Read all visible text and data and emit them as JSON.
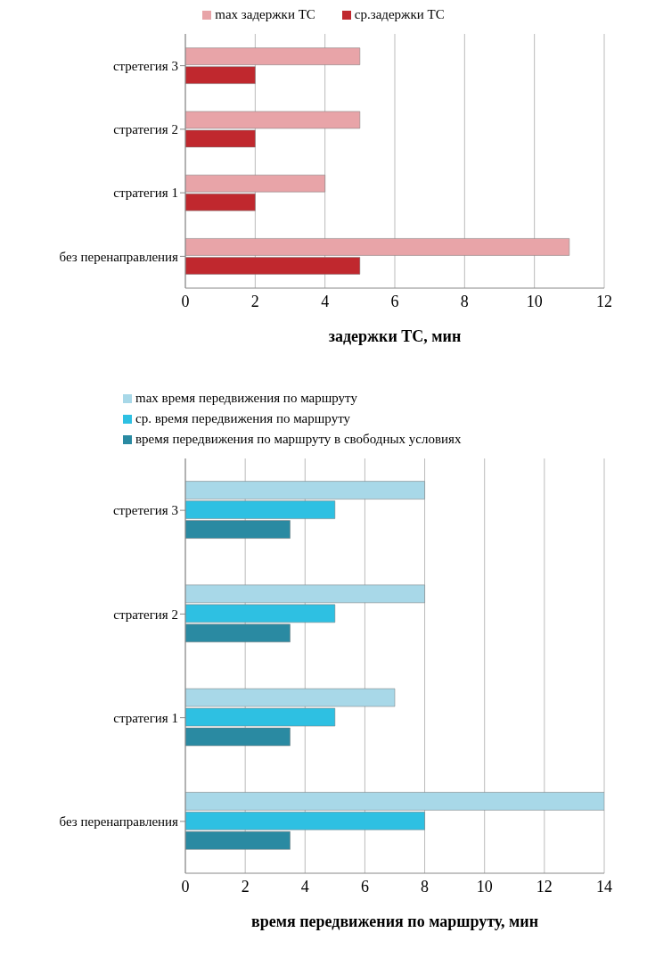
{
  "chart_data": [
    {
      "type": "bar",
      "orientation": "horizontal",
      "categories": [
        "стретегия 3",
        "стратегия 2",
        "стратегия 1",
        "без перенаправления"
      ],
      "series": [
        {
          "name": "max задержки ТС",
          "color": "#e8a4a8",
          "values": [
            5,
            5,
            4,
            11
          ]
        },
        {
          "name": "ср.задержки ТС",
          "color": "#c0282e",
          "values": [
            2,
            2,
            2,
            5
          ]
        }
      ],
      "xlabel": "задержки ТС, мин",
      "xlim": [
        0,
        12
      ],
      "xticks": [
        0,
        2,
        4,
        6,
        8,
        10,
        12
      ],
      "grid": "x",
      "legend": "top"
    },
    {
      "type": "bar",
      "orientation": "horizontal",
      "categories": [
        "стретегия 3",
        "стратегия 2",
        "стратегия 1",
        "без перенаправления"
      ],
      "series": [
        {
          "name": "max время передвижения по маршруту",
          "color": "#a8d8e8",
          "values": [
            8,
            8,
            7,
            14
          ]
        },
        {
          "name": "ср. время передвижения по маршруту",
          "color": "#2ec0e2",
          "values": [
            5,
            5,
            5,
            8
          ]
        },
        {
          "name": "время передвижения по маршруту в свободных условиях",
          "color": "#2a8aa2",
          "values": [
            3.5,
            3.5,
            3.5,
            3.5
          ]
        }
      ],
      "xlabel": "время передвижения по маршруту, мин",
      "xlim": [
        0,
        14
      ],
      "xticks": [
        0,
        2,
        4,
        6,
        8,
        10,
        12,
        14
      ],
      "grid": "x",
      "legend": "top"
    }
  ]
}
